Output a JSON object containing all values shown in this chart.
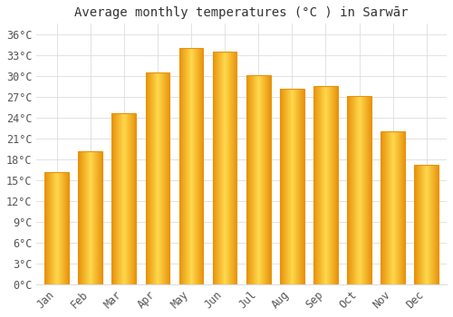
{
  "title": "Average monthly temperatures (°C ) in Sarwār",
  "months": [
    "Jan",
    "Feb",
    "Mar",
    "Apr",
    "May",
    "Jun",
    "Jul",
    "Aug",
    "Sep",
    "Oct",
    "Nov",
    "Dec"
  ],
  "values": [
    16.2,
    19.2,
    24.6,
    30.5,
    34.0,
    33.5,
    30.1,
    28.2,
    28.6,
    27.1,
    22.0,
    17.2
  ],
  "bar_color_center": "#FFD84D",
  "bar_color_edge": "#E8920A",
  "background_color": "#FFFFFF",
  "grid_color": "#DDDDDD",
  "text_color": "#555555",
  "yticks": [
    0,
    3,
    6,
    9,
    12,
    15,
    18,
    21,
    24,
    27,
    30,
    33,
    36
  ],
  "ylim": [
    0,
    37.5
  ],
  "title_fontsize": 10,
  "tick_fontsize": 8.5,
  "font_family": "monospace"
}
